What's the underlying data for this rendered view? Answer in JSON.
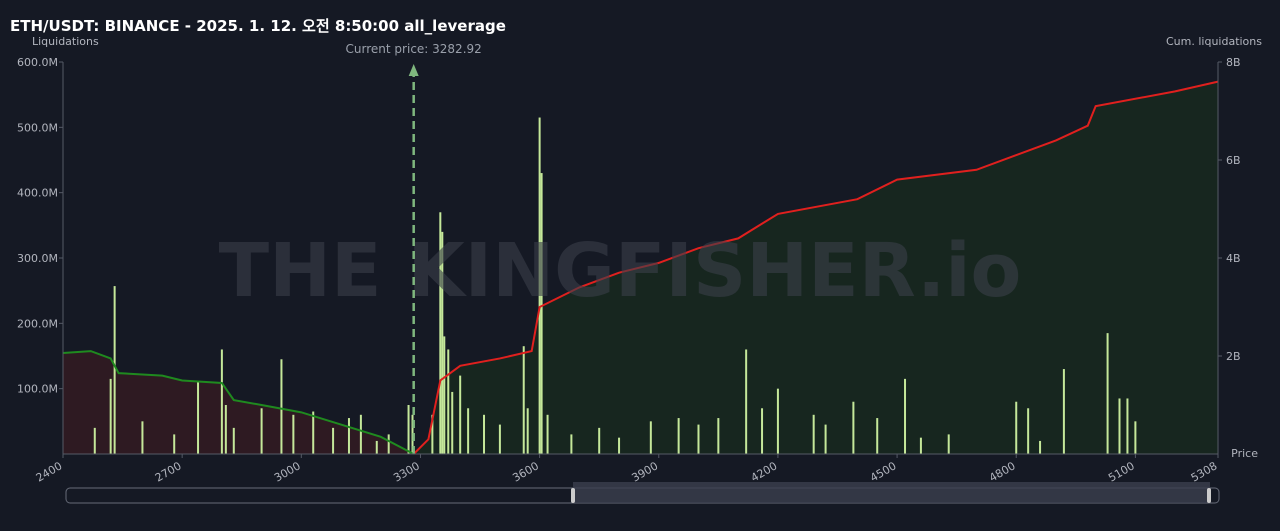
{
  "chart_data": {
    "type": "bar",
    "title": "ETH/USDT: BINANCE - 2025. 1. 12. 오전 8:50:00 all_leverage",
    "y_label": "Liquidations",
    "y2_label": "Cum. liquidations",
    "x_label": "Price",
    "watermark": "THE KINGFISHER.io",
    "annotation": {
      "value": 3282.92,
      "label": "Current price: 3282.92"
    },
    "xlim": [
      2400,
      5308
    ],
    "xticks": [
      2400,
      2700,
      3000,
      3300,
      3600,
      3900,
      4200,
      4500,
      4800,
      5100,
      5308
    ],
    "ylim": [
      0,
      600000000
    ],
    "yticks": [
      {
        "value": 100000000,
        "label": "100.0M"
      },
      {
        "value": 200000000,
        "label": "200.0M"
      },
      {
        "value": 300000000,
        "label": "300.0M"
      },
      {
        "value": 400000000,
        "label": "400.0M"
      },
      {
        "value": 500000000,
        "label": "500.0M"
      },
      {
        "value": 600000000,
        "label": "600.0M"
      }
    ],
    "y2lim": [
      0,
      8000000000
    ],
    "y2ticks": [
      {
        "value": 2000000000,
        "label": "2B"
      },
      {
        "value": 4000000000,
        "label": "4B"
      },
      {
        "value": 6000000000,
        "label": "6B"
      },
      {
        "value": 8000000000,
        "label": "8B"
      }
    ],
    "series": [
      {
        "type": "bar",
        "color": "#c5e89a",
        "x": [
          2480,
          2520,
          2530,
          2600,
          2680,
          2740,
          2800,
          2810,
          2830,
          2900,
          2950,
          2980,
          3030,
          3080,
          3120,
          3150,
          3190,
          3220,
          3270,
          3280,
          3330,
          3350,
          3355,
          3360,
          3370,
          3380,
          3400,
          3420,
          3460,
          3500,
          3560,
          3570,
          3600,
          3605,
          3620,
          3680,
          3750,
          3800,
          3880,
          3950,
          4000,
          4050,
          4120,
          4160,
          4200,
          4290,
          4320,
          4390,
          4450,
          4520,
          4560,
          4630,
          4800,
          4830,
          4860,
          4920,
          5030,
          5060,
          5080,
          5100
        ],
        "values": [
          40000000,
          115000000,
          257000000,
          50000000,
          30000000,
          110000000,
          160000000,
          75000000,
          40000000,
          70000000,
          145000000,
          60000000,
          65000000,
          40000000,
          55000000,
          60000000,
          20000000,
          30000000,
          75000000,
          60000000,
          60000000,
          370000000,
          340000000,
          180000000,
          160000000,
          95000000,
          120000000,
          70000000,
          60000000,
          45000000,
          165000000,
          70000000,
          515000000,
          430000000,
          60000000,
          30000000,
          40000000,
          25000000,
          50000000,
          55000000,
          45000000,
          55000000,
          160000000,
          70000000,
          100000000,
          60000000,
          45000000,
          80000000,
          55000000,
          115000000,
          25000000,
          30000000,
          80000000,
          70000000,
          20000000,
          130000000,
          185000000,
          85000000,
          85000000,
          50000000
        ]
      },
      {
        "type": "line",
        "axis": "y2",
        "color": "#1f8a1f",
        "fill": "#2e1a22",
        "x": [
          2400,
          2470,
          2520,
          2540,
          2650,
          2700,
          2800,
          2830,
          2900,
          3000,
          3100,
          3200,
          3282.92
        ],
        "values": [
          2060000000,
          2100000000,
          1950000000,
          1650000000,
          1600000000,
          1500000000,
          1450000000,
          1100000000,
          1000000000,
          850000000,
          600000000,
          350000000,
          0
        ]
      },
      {
        "type": "line",
        "axis": "y2",
        "color": "#e0201e",
        "fill": "#17261f",
        "x": [
          3282.92,
          3320,
          3350,
          3400,
          3500,
          3580,
          3600,
          3700,
          3800,
          3900,
          4000,
          4100,
          4200,
          4400,
          4500,
          4700,
          4900,
          4980,
          5000,
          5200,
          5308
        ],
        "values": [
          0,
          300000000,
          1500000000,
          1800000000,
          1950000000,
          2100000000,
          3000000000,
          3400000000,
          3700000000,
          3900000000,
          4200000000,
          4400000000,
          4900000000,
          5200000000,
          5600000000,
          5800000000,
          6400000000,
          6700000000,
          7100000000,
          7400000000,
          7600000000
        ]
      }
    ]
  }
}
